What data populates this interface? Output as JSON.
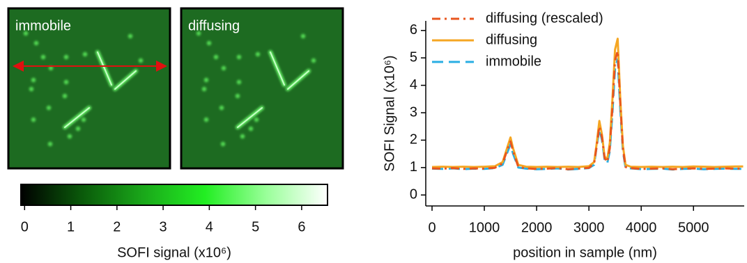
{
  "chart_data": [
    {
      "type": "image",
      "panels": [
        {
          "title": "immobile"
        },
        {
          "title": "diffusing"
        }
      ]
    },
    {
      "type": "colorbar",
      "label": "SOFI signal (x10⁶)",
      "xlim": [
        -0.08,
        6.56
      ],
      "xticks": [
        0,
        1,
        2,
        3,
        4,
        5,
        6
      ],
      "colors": [
        "#000000",
        "#0a5a0a",
        "#1aa81a",
        "#22ee22",
        "#99ff99",
        "#ffffff"
      ]
    },
    {
      "type": "line",
      "x_label": "position in sample (nm)",
      "y_label": "SOFI Signal (x10⁶)",
      "xlim": [
        -120,
        5970
      ],
      "ylim": [
        -0.4,
        6.35
      ],
      "xticks": [
        0,
        1000,
        2000,
        3000,
        4000,
        5000
      ],
      "yticks": [
        0,
        1,
        2,
        3,
        4,
        5,
        6
      ],
      "legend": "upper-left",
      "x": [
        0,
        200,
        400,
        600,
        800,
        1000,
        1200,
        1350,
        1450,
        1500,
        1550,
        1650,
        1800,
        2000,
        2200,
        2400,
        2600,
        2800,
        3000,
        3100,
        3150,
        3200,
        3250,
        3300,
        3350,
        3400,
        3450,
        3500,
        3550,
        3600,
        3650,
        3700,
        3800,
        4000,
        4200,
        4400,
        4600,
        4800,
        5000,
        5200,
        5400,
        5600,
        5800,
        5950
      ],
      "series": [
        {
          "name": "diffusing (rescaled)",
          "color": "#e8561e",
          "dash": "dash-dot",
          "values": [
            0.97,
            0.96,
            0.98,
            0.95,
            0.97,
            0.96,
            0.99,
            1.15,
            1.7,
            1.95,
            1.6,
            1.02,
            0.97,
            0.95,
            0.96,
            0.98,
            0.94,
            0.96,
            0.99,
            1.15,
            1.8,
            2.5,
            2.1,
            1.35,
            1.2,
            1.7,
            3.2,
            4.9,
            5.25,
            3.3,
            1.7,
            1.02,
            0.98,
            0.95,
            0.96,
            0.97,
            0.94,
            0.96,
            0.97,
            0.95,
            0.96,
            0.97,
            0.96,
            0.96
          ]
        },
        {
          "name": "diffusing",
          "color": "#f5a623",
          "dash": "solid",
          "values": [
            1.02,
            1.03,
            1.02,
            1.03,
            1.02,
            1.03,
            1.05,
            1.2,
            1.8,
            2.1,
            1.7,
            1.1,
            1.03,
            1.02,
            1.03,
            1.02,
            1.03,
            1.02,
            1.05,
            1.2,
            1.9,
            2.7,
            2.2,
            1.4,
            1.3,
            1.9,
            3.5,
            5.3,
            5.7,
            3.5,
            1.8,
            1.1,
            1.03,
            1.02,
            1.03,
            1.02,
            1.03,
            1.02,
            1.04,
            1.03,
            1.02,
            1.03,
            1.04,
            1.04
          ]
        },
        {
          "name": "immobile",
          "color": "#29aee3",
          "dash": "dashed",
          "values": [
            0.96,
            0.95,
            0.97,
            0.94,
            0.96,
            0.95,
            0.98,
            1.1,
            1.6,
            1.85,
            1.5,
            1.0,
            0.96,
            0.94,
            0.95,
            0.97,
            0.93,
            0.95,
            0.98,
            1.1,
            1.8,
            2.4,
            2.0,
            1.3,
            1.15,
            1.6,
            3.0,
            4.6,
            4.95,
            3.1,
            1.6,
            1.0,
            0.97,
            0.94,
            0.95,
            0.96,
            0.93,
            0.95,
            0.96,
            0.94,
            0.95,
            0.96,
            0.95,
            0.95
          ]
        }
      ]
    }
  ]
}
